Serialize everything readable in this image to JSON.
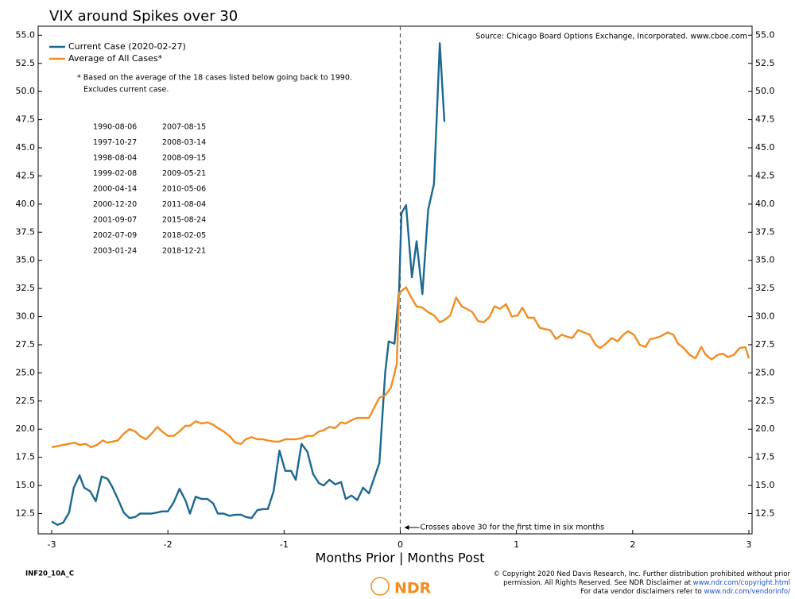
{
  "chart_data": {
    "type": "line",
    "title": "VIX around Spikes over 30",
    "source": "Source:  Chicago Board Options Exchange, Incorporated. www.cboe.com",
    "xlabel": "Months Prior | Months Post",
    "note": [
      "* Based on the average of the 18 cases listed below going back to 1990.",
      "Excludes current case."
    ],
    "cases": [
      "1990-08-06",
      "1997-10-27",
      "1998-08-04",
      "1999-02-08",
      "2000-04-14",
      "2000-12-20",
      "2001-09-07",
      "2002-07-09",
      "2003-01-24",
      "2007-08-15",
      "2008-03-14",
      "2008-09-15",
      "2009-05-21",
      "2010-05-06",
      "2011-08-04",
      "2015-08-24",
      "2018-02-05",
      "2018-12-21"
    ],
    "annotation": {
      "text": "Crosses above 30 for the first time in six months",
      "x": 0
    },
    "xlim": [
      -3,
      3
    ],
    "xticks": [
      -3,
      -2,
      -1,
      0,
      1,
      2,
      3
    ],
    "ylim": [
      10.7,
      55.8
    ],
    "yticks": [
      {
        "value": 12.5,
        "label": "12.5"
      },
      {
        "value": 15,
        "label": "15.0"
      },
      17.5,
      {
        "value": 20,
        "label": "20.0"
      },
      22.5,
      {
        "value": 25,
        "label": "25.0"
      },
      27.5,
      {
        "value": 30,
        "label": "30.0"
      },
      32.5,
      {
        "value": 35,
        "label": "35.0"
      },
      37.5,
      {
        "value": 40,
        "label": "40.0"
      },
      42.5,
      {
        "value": 45,
        "label": "45.0"
      },
      47.5,
      {
        "value": 50,
        "label": "50.0"
      },
      52.5,
      {
        "value": 55,
        "label": "55.0"
      }
    ],
    "grid": false,
    "series": [
      {
        "name": "Current Case (2020-02-27)",
        "color": "#1b6891",
        "x": [
          -3.0,
          -2.95,
          -2.9,
          -2.85,
          -2.81,
          -2.76,
          -2.72,
          -2.67,
          -2.62,
          -2.57,
          -2.52,
          -2.48,
          -2.43,
          -2.38,
          -2.33,
          -2.28,
          -2.24,
          -2.19,
          -2.14,
          -2.09,
          -2.05,
          -2.0,
          -1.95,
          -1.9,
          -1.85,
          -1.81,
          -1.76,
          -1.71,
          -1.66,
          -1.61,
          -1.57,
          -1.52,
          -1.47,
          -1.42,
          -1.37,
          -1.33,
          -1.28,
          -1.23,
          -1.18,
          -1.14,
          -1.09,
          -1.04,
          -0.99,
          -0.94,
          -0.9,
          -0.85,
          -0.8,
          -0.75,
          -0.7,
          -0.66,
          -0.61,
          -0.56,
          -0.51,
          -0.47,
          -0.42,
          -0.37,
          -0.32,
          -0.27,
          -0.23,
          -0.18,
          -0.13,
          -0.1,
          -0.05,
          -0.01,
          0.01,
          0.05,
          0.1,
          0.14,
          0.19,
          0.24,
          0.29,
          0.34,
          0.38
        ],
        "values": [
          11.8,
          11.5,
          11.7,
          12.6,
          14.8,
          15.9,
          14.8,
          14.5,
          13.6,
          15.8,
          15.6,
          14.9,
          13.8,
          12.6,
          12.1,
          12.2,
          12.5,
          12.5,
          12.5,
          12.6,
          12.7,
          12.7,
          13.5,
          14.7,
          13.7,
          12.5,
          14.0,
          13.8,
          13.8,
          13.4,
          12.5,
          12.5,
          12.3,
          12.4,
          12.4,
          12.2,
          12.1,
          12.8,
          12.9,
          12.9,
          14.5,
          18.1,
          16.3,
          16.3,
          15.5,
          18.7,
          18.0,
          16.0,
          15.2,
          15.0,
          15.5,
          15.1,
          15.3,
          13.8,
          14.1,
          13.7,
          14.8,
          14.3,
          15.5,
          17.0,
          25.0,
          27.8,
          27.6,
          32.3,
          39.2,
          39.9,
          33.5,
          36.7,
          32.0,
          39.5,
          41.8,
          54.3,
          47.3
        ]
      },
      {
        "name": "Average of All Cases*",
        "color": "#f28c1f",
        "x": [
          -3.0,
          -2.9,
          -2.8,
          -2.76,
          -2.71,
          -2.66,
          -2.61,
          -2.56,
          -2.52,
          -2.43,
          -2.38,
          -2.33,
          -2.28,
          -2.24,
          -2.19,
          -2.14,
          -2.09,
          -2.05,
          -2.0,
          -1.95,
          -1.9,
          -1.85,
          -1.81,
          -1.76,
          -1.71,
          -1.66,
          -1.61,
          -1.57,
          -1.52,
          -1.47,
          -1.42,
          -1.37,
          -1.33,
          -1.28,
          -1.23,
          -1.18,
          -1.14,
          -1.09,
          -1.04,
          -0.99,
          -0.94,
          -0.9,
          -0.85,
          -0.8,
          -0.75,
          -0.7,
          -0.66,
          -0.61,
          -0.56,
          -0.51,
          -0.47,
          -0.42,
          -0.37,
          -0.32,
          -0.27,
          -0.23,
          -0.18,
          -0.13,
          -0.08,
          -0.03,
          -0.01,
          0.05,
          0.1,
          0.14,
          0.19,
          0.24,
          0.29,
          0.34,
          0.38,
          0.43,
          0.48,
          0.53,
          0.57,
          0.62,
          0.67,
          0.72,
          0.77,
          0.81,
          0.86,
          0.91,
          0.96,
          1.01,
          1.05,
          1.1,
          1.15,
          1.2,
          1.24,
          1.29,
          1.34,
          1.39,
          1.44,
          1.48,
          1.53,
          1.58,
          1.63,
          1.68,
          1.72,
          1.77,
          1.82,
          1.87,
          1.92,
          1.96,
          2.01,
          2.06,
          2.11,
          2.15,
          2.2,
          2.25,
          2.3,
          2.35,
          2.39,
          2.44,
          2.49,
          2.54,
          2.59,
          2.63,
          2.68,
          2.73,
          2.78,
          2.82,
          2.87,
          2.92,
          2.97,
          3.0
        ],
        "values": [
          18.4,
          18.6,
          18.8,
          18.6,
          18.7,
          18.4,
          18.6,
          19.0,
          18.8,
          19.0,
          19.6,
          20.0,
          19.8,
          19.4,
          19.1,
          19.6,
          20.2,
          19.8,
          19.4,
          19.4,
          19.8,
          20.3,
          20.3,
          20.7,
          20.5,
          20.6,
          20.4,
          20.1,
          19.8,
          19.4,
          18.8,
          18.7,
          19.1,
          19.3,
          19.1,
          19.1,
          19.0,
          18.9,
          18.9,
          19.1,
          19.1,
          19.1,
          19.2,
          19.4,
          19.4,
          19.8,
          19.9,
          20.2,
          20.1,
          20.6,
          20.5,
          20.8,
          21.0,
          21.0,
          21.0,
          21.8,
          22.8,
          23.0,
          23.7,
          25.8,
          32.1,
          32.6,
          31.6,
          30.9,
          30.8,
          30.4,
          30.1,
          29.5,
          29.7,
          30.1,
          31.7,
          30.9,
          30.7,
          30.4,
          29.6,
          29.5,
          30.0,
          30.9,
          30.7,
          31.1,
          30.0,
          30.1,
          30.8,
          29.9,
          29.9,
          29.0,
          28.9,
          28.8,
          28.0,
          28.4,
          28.2,
          28.1,
          28.8,
          28.6,
          28.4,
          27.5,
          27.2,
          27.6,
          28.1,
          27.8,
          28.4,
          28.7,
          28.4,
          27.5,
          27.3,
          28.0,
          28.1,
          28.3,
          28.6,
          28.4,
          27.6,
          27.2,
          26.6,
          26.3,
          27.3,
          26.6,
          26.2,
          26.6,
          26.7,
          26.4,
          26.6,
          27.2,
          27.3,
          26.3
        ]
      }
    ]
  },
  "footer": {
    "code": "INF20_10A_C",
    "logo": "NDR",
    "lines": [
      {
        "text": "© Copyright 2020 Ned Davis Research, Inc. Further distribution prohibited without prior"
      },
      {
        "text": "permission. All Rights Reserved. See NDR Disclaimer at ",
        "link": "www.ndr.com/copyright.html"
      },
      {
        "text": "For data vendor disclaimers refer to ",
        "link": "www.ndr.com/vendorinfo/"
      }
    ]
  }
}
